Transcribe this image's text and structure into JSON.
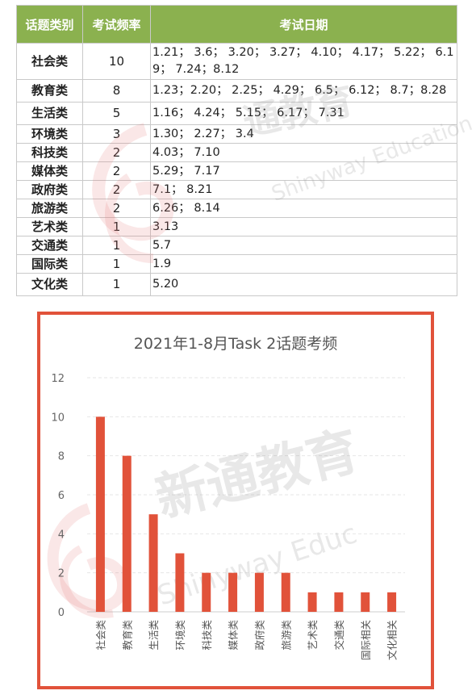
{
  "table": {
    "headers": [
      "话题类别",
      "考试频率",
      "考试日期"
    ],
    "rows": [
      {
        "category": "社会类",
        "count": "10",
        "dates": "1.21； 3.6； 3.20； 3.27； 4.10； 4.17； 5.22； 6.19； 7.24；8.12"
      },
      {
        "category": "教育类",
        "count": "8",
        "dates": "1.23；2.20； 2.25； 4.29； 6.5； 6.12； 8.7；8.28"
      },
      {
        "category": "生活类",
        "count": "5",
        "dates": "1.16； 4.24； 5.15； 6.17； 7.31"
      },
      {
        "category": "环境类",
        "count": "3",
        "dates": "1.30； 2.27； 3.4"
      },
      {
        "category": "科技类",
        "count": "2",
        "dates": "4.03； 7.10"
      },
      {
        "category": "媒体类",
        "count": "2",
        "dates": "5.29； 7.17"
      },
      {
        "category": "政府类",
        "count": "2",
        "dates": "7.1； 8.21"
      },
      {
        "category": "旅游类",
        "count": "2",
        "dates": "6.26； 8.14"
      },
      {
        "category": "艺术类",
        "count": "1",
        "dates": "3.13"
      },
      {
        "category": "交通类",
        "count": "1",
        "dates": "5.7"
      },
      {
        "category": "国际类",
        "count": "1",
        "dates": "1.9"
      },
      {
        "category": "文化类",
        "count": "1",
        "dates": "5.20"
      }
    ]
  },
  "watermark": {
    "brand": "新通教育",
    "brand_partial_table": "通教育",
    "english": "Shinyway Education",
    "english_partial_table": "Shinyway Education",
    "english_partial_chart": "Shinyway Educ"
  },
  "colors": {
    "header_green": "#8bb14f",
    "bar_red": "#e1523a",
    "frame_red": "#e1523a"
  },
  "chart_data": {
    "type": "bar",
    "title": "2021年1-8月Task 2话题考频",
    "categories": [
      "社会类",
      "教育类",
      "生活类",
      "环境类",
      "科技类",
      "媒体类",
      "政府类",
      "旅游类",
      "艺术类",
      "交通类",
      "国际相关",
      "文化相关"
    ],
    "values": [
      10,
      8,
      5,
      3,
      2,
      2,
      2,
      2,
      1,
      1,
      1,
      1
    ],
    "ylim": [
      0,
      12
    ],
    "yticks": [
      "0",
      "2",
      "4",
      "6",
      "8",
      "10",
      "12"
    ],
    "grid": true,
    "xlabel": "",
    "ylabel": ""
  }
}
